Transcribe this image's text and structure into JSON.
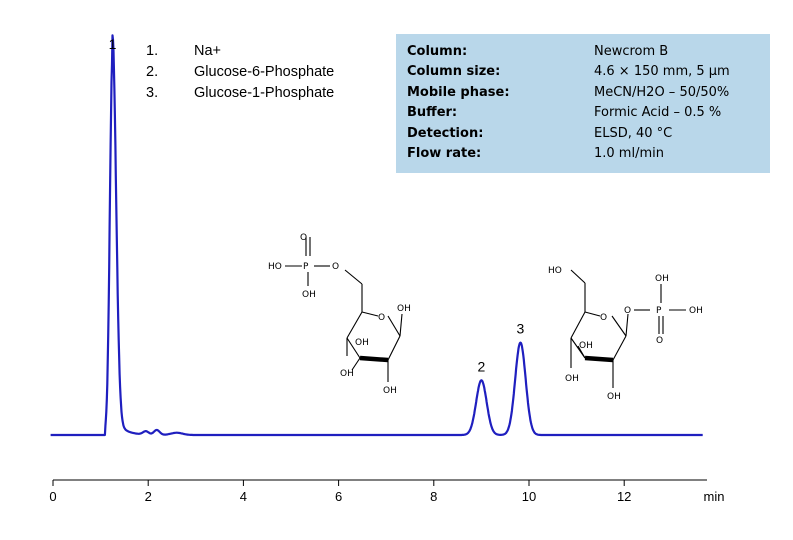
{
  "legend": [
    {
      "num": "1.",
      "name": "Na+"
    },
    {
      "num": "2.",
      "name": "Glucose-6-Phosphate"
    },
    {
      "num": "3.",
      "name": "Glucose-1-Phosphate"
    }
  ],
  "conditions": [
    {
      "key": "Column:",
      "value": "Newcrom B"
    },
    {
      "key": "Column size:",
      "value": "4.6 × 150 mm, 5 µm"
    },
    {
      "key": "Mobile phase:",
      "value": "MeCN/H2O – 50/50%"
    },
    {
      "key": "Buffer:",
      "value": "Formic Acid – 0.5 %"
    },
    {
      "key": "Detection:",
      "value": "ELSD, 40 °C"
    },
    {
      "key": "Flow rate:",
      "value": "1.0 ml/min"
    }
  ],
  "molecules": {
    "g6p": {
      "ho": "HO",
      "p": "P",
      "o": "O",
      "oh": "OH"
    },
    "g1p": {
      "ho": "HO",
      "p": "P",
      "o": "O",
      "oh": "OH"
    }
  },
  "chart_data": {
    "type": "line",
    "title": "",
    "xlabel": "min",
    "ylabel": "",
    "xlim": [
      0,
      14
    ],
    "ylim": [
      0,
      100
    ],
    "x_ticks": [
      0,
      2,
      4,
      6,
      8,
      10,
      12
    ],
    "grid": false,
    "line_color": "#1f1fbf",
    "baseline": 5,
    "series": [
      {
        "peaks": [
          {
            "label": "1",
            "rt": 1.25,
            "height": 100
          },
          {
            "label": "2",
            "rt": 9.0,
            "height": 14.5
          },
          {
            "label": "3",
            "rt": 9.82,
            "height": 24.5
          }
        ]
      }
    ]
  }
}
